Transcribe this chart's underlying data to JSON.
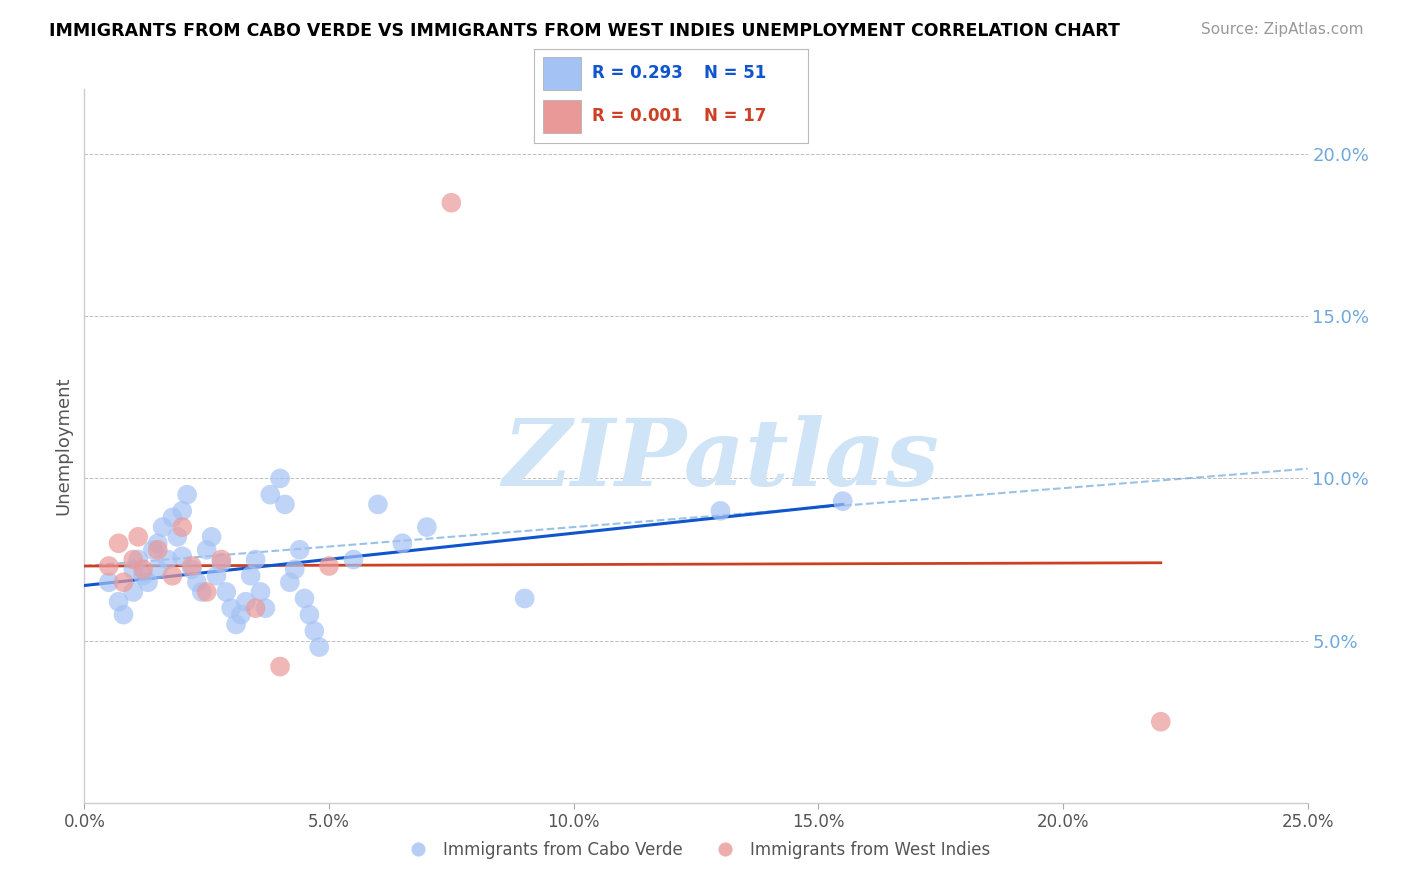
{
  "title": "IMMIGRANTS FROM CABO VERDE VS IMMIGRANTS FROM WEST INDIES UNEMPLOYMENT CORRELATION CHART",
  "source": "Source: ZipAtlas.com",
  "ylabel": "Unemployment",
  "xlabel": "",
  "xlim": [
    0.0,
    0.25
  ],
  "ylim": [
    0.0,
    0.22
  ],
  "yticks": [
    0.05,
    0.1,
    0.15,
    0.2
  ],
  "ytick_labels": [
    "5.0%",
    "10.0%",
    "15.0%",
    "20.0%"
  ],
  "xticks": [
    0.0,
    0.05,
    0.1,
    0.15,
    0.2,
    0.25
  ],
  "xtick_labels": [
    "0.0%",
    "5.0%",
    "10.0%",
    "15.0%",
    "20.0%",
    "25.0%"
  ],
  "cabo_verde_R": "0.293",
  "cabo_verde_N": "51",
  "west_indies_R": "0.001",
  "west_indies_N": "17",
  "cabo_verde_color": "#a4c2f4",
  "west_indies_color": "#ea9999",
  "cabo_verde_line_color": "#1155cc",
  "west_indies_line_color": "#cc4125",
  "cabo_verde_ci_color": "#6fa8dc",
  "watermark": "ZIPatlas",
  "watermark_color": "#d0e4f7",
  "background_color": "#ffffff",
  "grid_color": "#b0b0b0",
  "title_color": "#000000",
  "source_color": "#999999",
  "legend_text_color": "#1155cc",
  "axis_label_color": "#555555",
  "tick_color": "#555555"
}
